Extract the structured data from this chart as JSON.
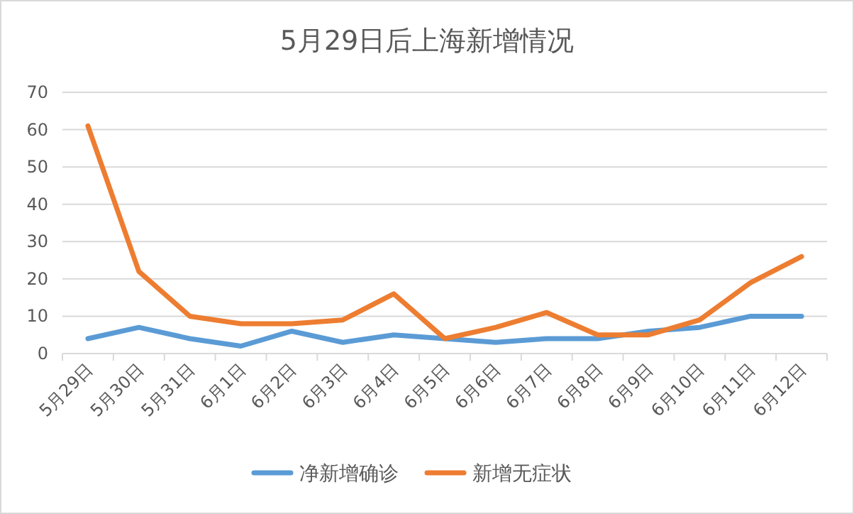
{
  "chart_data": {
    "type": "line",
    "title": "5月29日后上海新增情况",
    "categories": [
      "5月29日",
      "5月30日",
      "5月31日",
      "6月1日",
      "6月2日",
      "6月3日",
      "6月4日",
      "6月5日",
      "6月6日",
      "6月7日",
      "6月8日",
      "6月9日",
      "6月10日",
      "6月11日",
      "6月12日"
    ],
    "series": [
      {
        "name": "净新增确诊",
        "color": "#5b9bd5",
        "values": [
          4,
          7,
          4,
          2,
          6,
          3,
          5,
          4,
          3,
          4,
          4,
          6,
          7,
          10,
          10
        ]
      },
      {
        "name": "新增无症状",
        "color": "#ed7d31",
        "values": [
          61,
          22,
          10,
          8,
          8,
          9,
          16,
          4,
          7,
          11,
          5,
          5,
          9,
          19,
          26
        ]
      }
    ],
    "ylim": [
      0,
      70
    ],
    "yticks": [
      0,
      10,
      20,
      30,
      40,
      50,
      60,
      70
    ],
    "grid": "y",
    "legend": "bottom",
    "marker": "none",
    "line_style": "solid"
  }
}
